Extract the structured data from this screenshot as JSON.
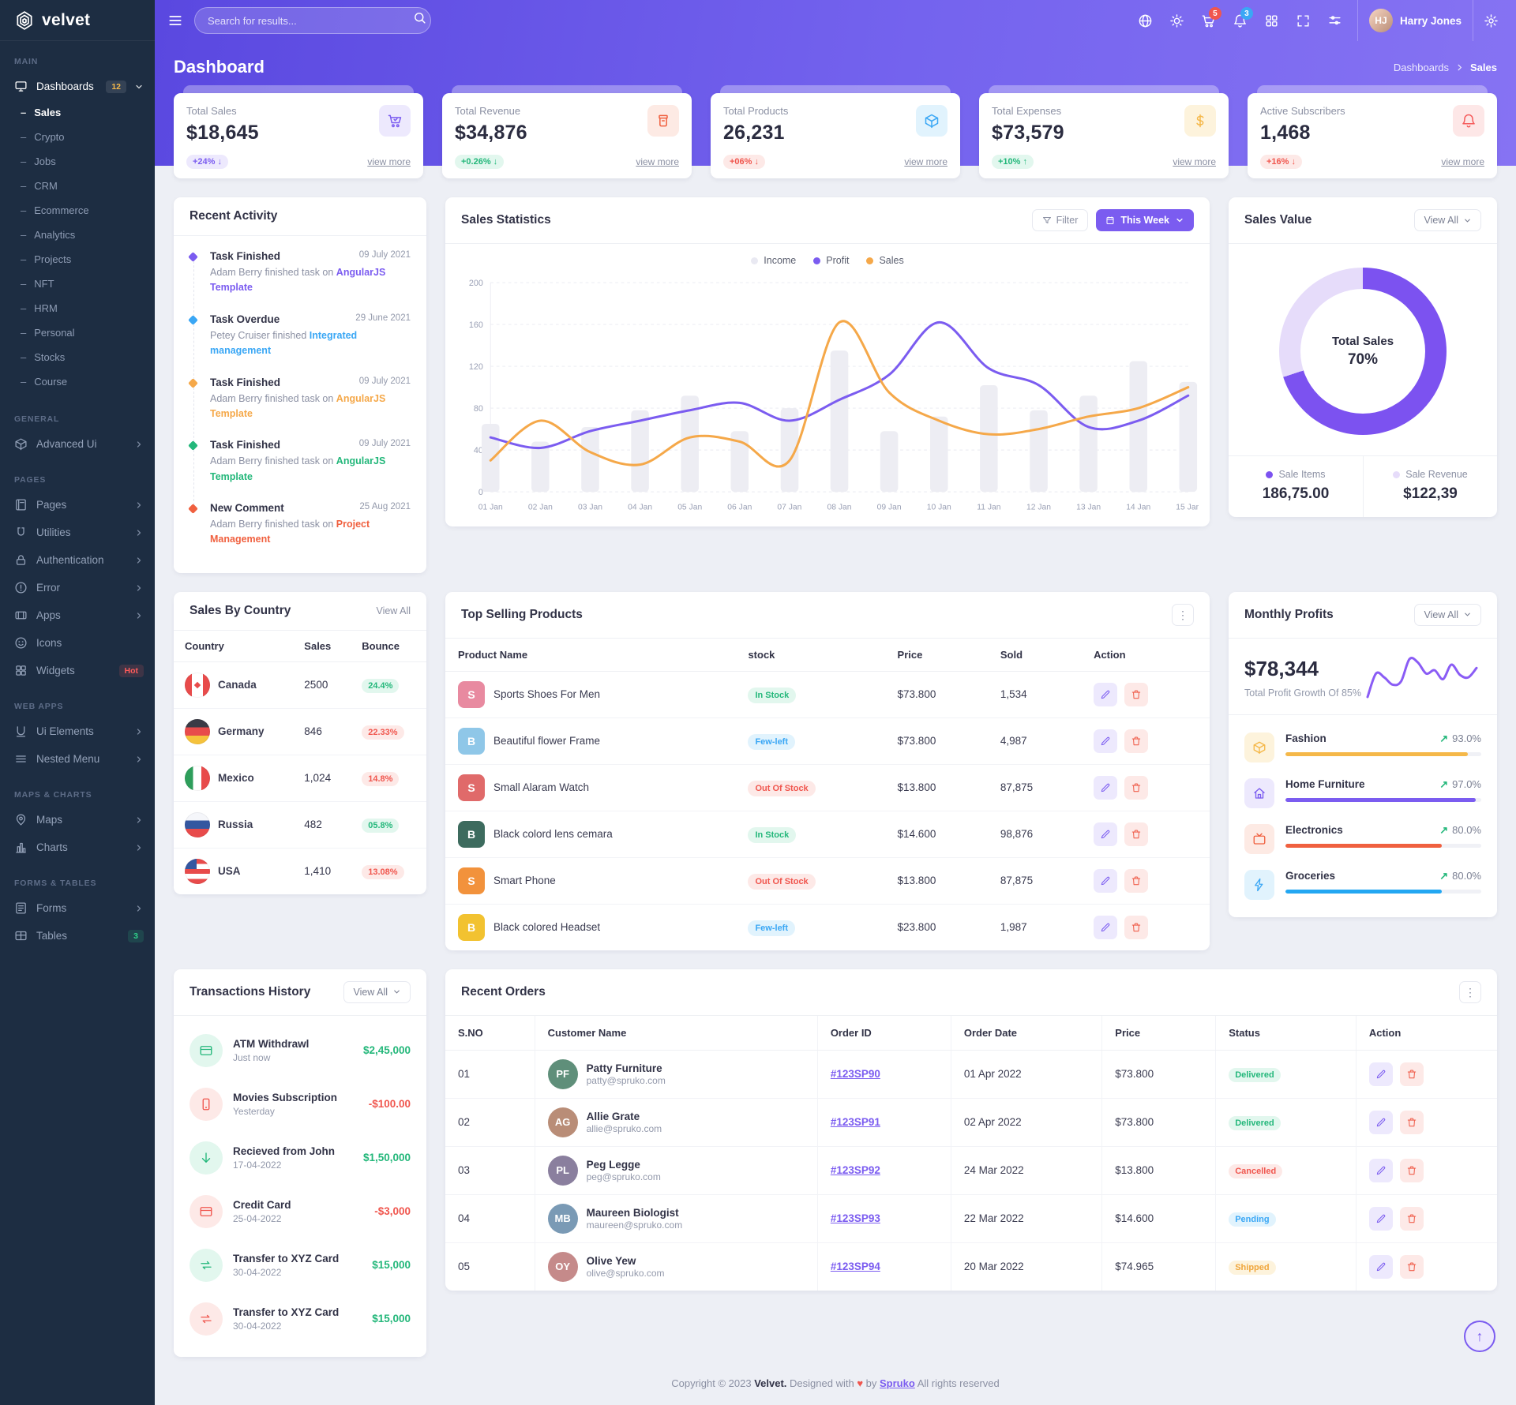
{
  "brand": {
    "name": "velvet"
  },
  "header": {
    "search_placeholder": "Search for results...",
    "cart_badge": "5",
    "bell_badge": "3",
    "user_name": "Harry Jones",
    "user_initials": "HJ"
  },
  "page": {
    "title": "Dashboard",
    "breadcrumb": [
      "Dashboards",
      "Sales"
    ]
  },
  "sidebar": {
    "sections": [
      {
        "label": "MAIN",
        "items": [
          {
            "icon": "monitor",
            "label": "Dashboards",
            "badge": "12",
            "badge_style": "amber",
            "chevron": "down",
            "active": true,
            "children": [
              {
                "label": "Sales",
                "active": true
              },
              {
                "label": "Crypto"
              },
              {
                "label": "Jobs"
              },
              {
                "label": "CRM"
              },
              {
                "label": "Ecommerce"
              },
              {
                "label": "Analytics"
              },
              {
                "label": "Projects"
              },
              {
                "label": "NFT"
              },
              {
                "label": "HRM"
              },
              {
                "label": "Personal"
              },
              {
                "label": "Stocks"
              },
              {
                "label": "Course"
              }
            ]
          }
        ]
      },
      {
        "label": "GENERAL",
        "items": [
          {
            "icon": "cube",
            "label": "Advanced Ui",
            "chevron": "right"
          }
        ]
      },
      {
        "label": "PAGES",
        "items": [
          {
            "icon": "file",
            "label": "Pages",
            "chevron": "right"
          },
          {
            "icon": "utilities",
            "label": "Utilities",
            "chevron": "right"
          },
          {
            "icon": "lock",
            "label": "Authentication",
            "chevron": "right"
          },
          {
            "icon": "alert",
            "label": "Error",
            "chevron": "right"
          },
          {
            "icon": "apps",
            "label": "Apps",
            "chevron": "right"
          },
          {
            "icon": "smiley",
            "label": "Icons"
          },
          {
            "icon": "widgets",
            "label": "Widgets",
            "badge": "Hot",
            "badge_style": "red"
          }
        ]
      },
      {
        "label": "WEB APPS",
        "items": [
          {
            "icon": "uielem",
            "label": "Ui Elements",
            "chevron": "right"
          },
          {
            "icon": "nested",
            "label": "Nested Menu",
            "chevron": "right"
          }
        ]
      },
      {
        "label": "MAPS & CHARTS",
        "items": [
          {
            "icon": "map",
            "label": "Maps",
            "chevron": "right"
          },
          {
            "icon": "chart",
            "label": "Charts",
            "chevron": "right"
          }
        ]
      },
      {
        "label": "FORMS & TABLES",
        "items": [
          {
            "icon": "form",
            "label": "Forms",
            "chevron": "right"
          },
          {
            "icon": "table",
            "label": "Tables",
            "badge": "3",
            "badge_style": "green"
          }
        ]
      }
    ]
  },
  "stat_cards": [
    {
      "label": "Total Sales",
      "value": "$18,645",
      "change": "+24%",
      "arrow": "down",
      "pill": "pill-purple",
      "icon": "cart",
      "tint": "tint-purple",
      "view_more": "view more"
    },
    {
      "label": "Total Revenue",
      "value": "$34,876",
      "change": "+0.26%",
      "arrow": "down",
      "pill": "pill-green",
      "icon": "archive",
      "tint": "tint-orange",
      "view_more": "view more"
    },
    {
      "label": "Total Products",
      "value": "26,231",
      "change": "+06%",
      "arrow": "down",
      "pill": "pill-red",
      "icon": "box",
      "tint": "tint-blue",
      "view_more": "view more"
    },
    {
      "label": "Total Expenses",
      "value": "$73,579",
      "change": "+10%",
      "arrow": "up",
      "pill": "pill-green",
      "icon": "dollar",
      "tint": "tint-amber",
      "view_more": "view more"
    },
    {
      "label": "Active Subscribers",
      "value": "1,468",
      "change": "+16%",
      "arrow": "down",
      "pill": "pill-red",
      "icon": "bell",
      "tint": "tint-red",
      "view_more": "view more"
    }
  ],
  "recent_activity": {
    "title": "Recent Activity",
    "items": [
      {
        "title": "Task Finished",
        "text": "Adam Berry finished task on",
        "link": "AngularJS Template",
        "color": "purple",
        "date": "09 July 2021"
      },
      {
        "title": "Task Overdue",
        "text": "Petey Cruiser finished",
        "link": "Integrated management",
        "color": "blue",
        "date": "29 June 2021"
      },
      {
        "title": "Task Finished",
        "text": "Adam Berry finished task on",
        "link": "AngularJS Template",
        "color": "orange",
        "date": "09 July 2021"
      },
      {
        "title": "Task Finished",
        "text": "Adam Berry finished task on",
        "link": "AngularJS Template",
        "color": "green",
        "date": "09 July 2021"
      },
      {
        "title": "New Comment",
        "text": "Adam Berry finished task on",
        "link": "Project Management",
        "color": "red",
        "date": "25 Aug 2021"
      }
    ]
  },
  "sales_statistics": {
    "title": "Sales Statistics",
    "filter_label": "Filter",
    "period_label": "This Week",
    "chart_data": {
      "type": "bar+line",
      "categories": [
        "01 Jan",
        "02 Jan",
        "03 Jan",
        "04 Jan",
        "05 Jan",
        "06 Jan",
        "07 Jan",
        "08 Jan",
        "09 Jan",
        "10 Jan",
        "11 Jan",
        "12 Jan",
        "13 Jan",
        "14 Jan",
        "15 Jan"
      ],
      "ylim": [
        0,
        200
      ],
      "yticks": [
        0,
        40,
        80,
        120,
        160,
        200
      ],
      "series": [
        {
          "name": "Income",
          "type": "bar",
          "color": "#ededf3",
          "values": [
            65,
            48,
            62,
            78,
            92,
            58,
            80,
            135,
            58,
            72,
            102,
            78,
            92,
            125,
            105
          ]
        },
        {
          "name": "Profit",
          "type": "line",
          "color": "#7b5cf0",
          "values": [
            52,
            42,
            58,
            68,
            78,
            85,
            68,
            88,
            112,
            162,
            118,
            102,
            62,
            68,
            92
          ]
        },
        {
          "name": "Sales",
          "type": "line",
          "color": "#f5a849",
          "values": [
            30,
            68,
            38,
            26,
            52,
            48,
            30,
            162,
            95,
            68,
            55,
            60,
            72,
            80,
            100
          ]
        }
      ],
      "legend": [
        {
          "name": "Income",
          "color": "#e9e9f2"
        },
        {
          "name": "Profit",
          "color": "#7b5cf0"
        },
        {
          "name": "Sales",
          "color": "#f5a849"
        }
      ]
    }
  },
  "sales_value": {
    "title": "Sales Value",
    "view_all": "View All",
    "percent": 70,
    "center_label": "Total Sales",
    "center_value": "70%",
    "items": [
      {
        "label": "Sale Items",
        "value": "186,75.00",
        "dot": "#7c52f0"
      },
      {
        "label": "Sale Revenue",
        "value": "$122,39",
        "dot": "#e6dcfa"
      }
    ]
  },
  "sales_by_country": {
    "title": "Sales By Country",
    "view_all": "View All",
    "headers": [
      "Country",
      "Sales",
      "Bounce"
    ],
    "rows": [
      {
        "country": "Canada",
        "flag": "ca",
        "sales": "2500",
        "bounce": "24.4%",
        "bounce_color": "pill-green"
      },
      {
        "country": "Germany",
        "flag": "de",
        "sales": "846",
        "bounce": "22.33%",
        "bounce_color": "pill-red"
      },
      {
        "country": "Mexico",
        "flag": "mx",
        "sales": "1,024",
        "bounce": "14.8%",
        "bounce_color": "pill-red"
      },
      {
        "country": "Russia",
        "flag": "ru",
        "sales": "482",
        "bounce": "05.8%",
        "bounce_color": "pill-green"
      },
      {
        "country": "USA",
        "flag": "us",
        "sales": "1,410",
        "bounce": "13.08%",
        "bounce_color": "pill-red"
      }
    ]
  },
  "top_selling": {
    "title": "Top Selling Products",
    "headers": [
      "Product Name",
      "stock",
      "Price",
      "Sold",
      "Action"
    ],
    "rows": [
      {
        "name": "Sports Shoes For Men",
        "thumb": "#e88aa0",
        "stock": "In Stock",
        "stock_color": "pill-green",
        "price": "$73.800",
        "sold": "1,534"
      },
      {
        "name": "Beautiful flower Frame",
        "thumb": "#8fc7e8",
        "stock": "Few-left",
        "stock_color": "pill-blue",
        "price": "$73.800",
        "sold": "4,987"
      },
      {
        "name": "Small Alaram Watch",
        "thumb": "#e06a6a",
        "stock": "Out Of Stock",
        "stock_color": "pill-red",
        "price": "$13.800",
        "sold": "87,875"
      },
      {
        "name": "Black colord lens cemara",
        "thumb": "#3d6b5e",
        "stock": "In Stock",
        "stock_color": "pill-green",
        "price": "$14.600",
        "sold": "98,876"
      },
      {
        "name": "Smart Phone",
        "thumb": "#f2923c",
        "stock": "Out Of Stock",
        "stock_color": "pill-red",
        "price": "$13.800",
        "sold": "87,875"
      },
      {
        "name": "Black colored Headset",
        "thumb": "#f2c230",
        "stock": "Few-left",
        "stock_color": "pill-blue",
        "price": "$23.800",
        "sold": "1,987"
      }
    ]
  },
  "monthly_profits": {
    "title": "Monthly Profits",
    "view_all": "View All",
    "value": "$78,344",
    "subtitle": "Total Profit Growth Of 85%",
    "sparkline": [
      20,
      62,
      55,
      42,
      48,
      88,
      82,
      62,
      68,
      52,
      78,
      60,
      55,
      72
    ],
    "categories": [
      {
        "name": "Fashion",
        "pct": "93.0%",
        "value": 93,
        "color": "#f5b849",
        "icon": "box",
        "tint": "tint-amber"
      },
      {
        "name": "Home Furniture",
        "pct": "97.0%",
        "value": 97,
        "color": "#7b5cf0",
        "icon": "home",
        "tint": "tint-purple"
      },
      {
        "name": "Electronics",
        "pct": "80.0%",
        "value": 80,
        "color": "#f0603f",
        "icon": "tv",
        "tint": "tint-orange"
      },
      {
        "name": "Groceries",
        "pct": "80.0%",
        "value": 80,
        "color": "#23a7f2",
        "icon": "zap",
        "tint": "tint-blue"
      }
    ]
  },
  "transactions": {
    "title": "Transactions History",
    "view_all": "View All",
    "rows": [
      {
        "name": "ATM Withdrawl",
        "date": "Just now",
        "amount": "$2,45,000",
        "amount_color": "amt-green",
        "icon": "card",
        "icon_bg": "bg-green"
      },
      {
        "name": "Movies Subscription",
        "date": "Yesterday",
        "amount": "-$100.00",
        "amount_color": "amt-red",
        "icon": "phone",
        "icon_bg": "bg-red"
      },
      {
        "name": "Recieved from John",
        "date": "17-04-2022",
        "amount": "$1,50,000",
        "amount_color": "amt-green",
        "icon": "arrdown",
        "icon_bg": "bg-green"
      },
      {
        "name": "Credit Card",
        "date": "25-04-2022",
        "amount": "-$3,000",
        "amount_color": "amt-red",
        "icon": "card",
        "icon_bg": "bg-red"
      },
      {
        "name": "Transfer to XYZ Card",
        "date": "30-04-2022",
        "amount": "$15,000",
        "amount_color": "amt-green",
        "icon": "repeat",
        "icon_bg": "bg-green"
      },
      {
        "name": "Transfer to XYZ Card",
        "date": "30-04-2022",
        "amount": "$15,000",
        "amount_color": "amt-green",
        "icon": "repeat",
        "icon_bg": "bg-red"
      }
    ]
  },
  "recent_orders": {
    "title": "Recent Orders",
    "headers": [
      "S.NO",
      "Customer Name",
      "Order ID",
      "Order Date",
      "Price",
      "Status",
      "Action"
    ],
    "rows": [
      {
        "sno": "01",
        "name": "Patty Furniture",
        "email": "patty@spruko.com",
        "initials": "PF",
        "av": "#5f8f7a",
        "order_id": "#123SP90",
        "date": "01 Apr 2022",
        "price": "$73.800",
        "status": "Delivered",
        "status_color": "pill-green"
      },
      {
        "sno": "02",
        "name": "Allie Grate",
        "email": "allie@spruko.com",
        "initials": "AG",
        "av": "#b98d77",
        "order_id": "#123SP91",
        "date": "02 Apr 2022",
        "price": "$73.800",
        "status": "Delivered",
        "status_color": "pill-green"
      },
      {
        "sno": "03",
        "name": "Peg Legge",
        "email": "peg@spruko.com",
        "initials": "PL",
        "av": "#8a7f9e",
        "order_id": "#123SP92",
        "date": "24 Mar 2022",
        "price": "$13.800",
        "status": "Cancelled",
        "status_color": "pill-red"
      },
      {
        "sno": "04",
        "name": "Maureen Biologist",
        "email": "maureen@spruko.com",
        "initials": "MB",
        "av": "#7a9ab5",
        "order_id": "#123SP93",
        "date": "22 Mar 2022",
        "price": "$14.600",
        "status": "Pending",
        "status_color": "pill-blue"
      },
      {
        "sno": "05",
        "name": "Olive Yew",
        "email": "olive@spruko.com",
        "initials": "OY",
        "av": "#c58a8a",
        "order_id": "#123SP94",
        "date": "20 Mar 2022",
        "price": "$74.965",
        "status": "Shipped",
        "status_color": "pill-amber"
      }
    ]
  },
  "footer": {
    "prefix": "Copyright © 2023",
    "brand": "Velvet.",
    "middle": "Designed with",
    "heart": "♥",
    "by": "by",
    "link": "Spruko",
    "suffix": "All rights reserved"
  }
}
